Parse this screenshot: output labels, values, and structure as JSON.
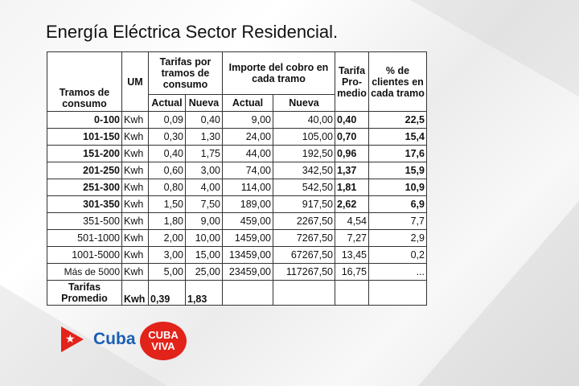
{
  "title": "Energía Eléctrica Sector Residencial.",
  "headers": {
    "tramos": "Tramos de consumo",
    "um": "UM",
    "tarifas": "Tarifas por tramos de consumo",
    "importe": "Importe del cobro en cada tramo",
    "tarifa_promedio": "Tarifa Pro-medio",
    "clientes": "% de clientes en cada tramo",
    "actual": "Actual",
    "nueva": "Nueva",
    "actual2": "Actual",
    "nueva2": "Nueva"
  },
  "rows": [
    {
      "tramo": "0-100",
      "um": "Kwh",
      "tar_actual": "0,09",
      "tar_nueva": "0,40",
      "imp_actual": "9,00",
      "imp_nueva": "40,00",
      "promedio": "0,40",
      "clientes": "22,5"
    },
    {
      "tramo": "101-150",
      "um": "Kwh",
      "tar_actual": "0,30",
      "tar_nueva": "1,30",
      "imp_actual": "24,00",
      "imp_nueva": "105,00",
      "promedio": "0,70",
      "clientes": "15,4"
    },
    {
      "tramo": "151-200",
      "um": "Kwh",
      "tar_actual": "0,40",
      "tar_nueva": "1,75",
      "imp_actual": "44,00",
      "imp_nueva": "192,50",
      "promedio": "0,96",
      "clientes": "17,6"
    },
    {
      "tramo": "201-250",
      "um": "Kwh",
      "tar_actual": "0,60",
      "tar_nueva": "3,00",
      "imp_actual": "74,00",
      "imp_nueva": "342,50",
      "promedio": "1,37",
      "clientes": "15,9"
    },
    {
      "tramo": "251-300",
      "um": "Kwh",
      "tar_actual": "0,80",
      "tar_nueva": "4,00",
      "imp_actual": "114,00",
      "imp_nueva": "542,50",
      "promedio": "1,81",
      "clientes": "10,9"
    },
    {
      "tramo": "301-350",
      "um": "Kwh",
      "tar_actual": "1,50",
      "tar_nueva": "7,50",
      "imp_actual": "189,00",
      "imp_nueva": "917,50",
      "promedio": "2,62",
      "clientes": "6,9"
    },
    {
      "tramo": "351-500",
      "um": "Kwh",
      "tar_actual": "1,80",
      "tar_nueva": "9,00",
      "imp_actual": "459,00",
      "imp_nueva": "2267,50",
      "promedio": "4,54",
      "clientes": "7,7"
    },
    {
      "tramo": "501-1000",
      "um": "Kwh",
      "tar_actual": "2,00",
      "tar_nueva": "10,00",
      "imp_actual": "1459,00",
      "imp_nueva": "7267,50",
      "promedio": "7,27",
      "clientes": "2,9"
    },
    {
      "tramo": "1001-5000",
      "um": "Kwh",
      "tar_actual": "3,00",
      "tar_nueva": "15,00",
      "imp_actual": "13459,00",
      "imp_nueva": "67267,50",
      "promedio": "13,45",
      "clientes": "0,2"
    },
    {
      "tramo": "Más de 5000",
      "um": "Kwh",
      "tar_actual": "5,00",
      "tar_nueva": "25,00",
      "imp_actual": "23459,00",
      "imp_nueva": "117267,50",
      "promedio": "16,75",
      "clientes": "..."
    }
  ],
  "footer": {
    "label": "Tarifas Promedio",
    "um": "Kwh",
    "actual": "0,39",
    "nueva": "1,83"
  },
  "logos": {
    "cuba_text": "Cuba",
    "cubaviva_line1": "CUBA",
    "cubaviva_line2": "VIVA"
  }
}
